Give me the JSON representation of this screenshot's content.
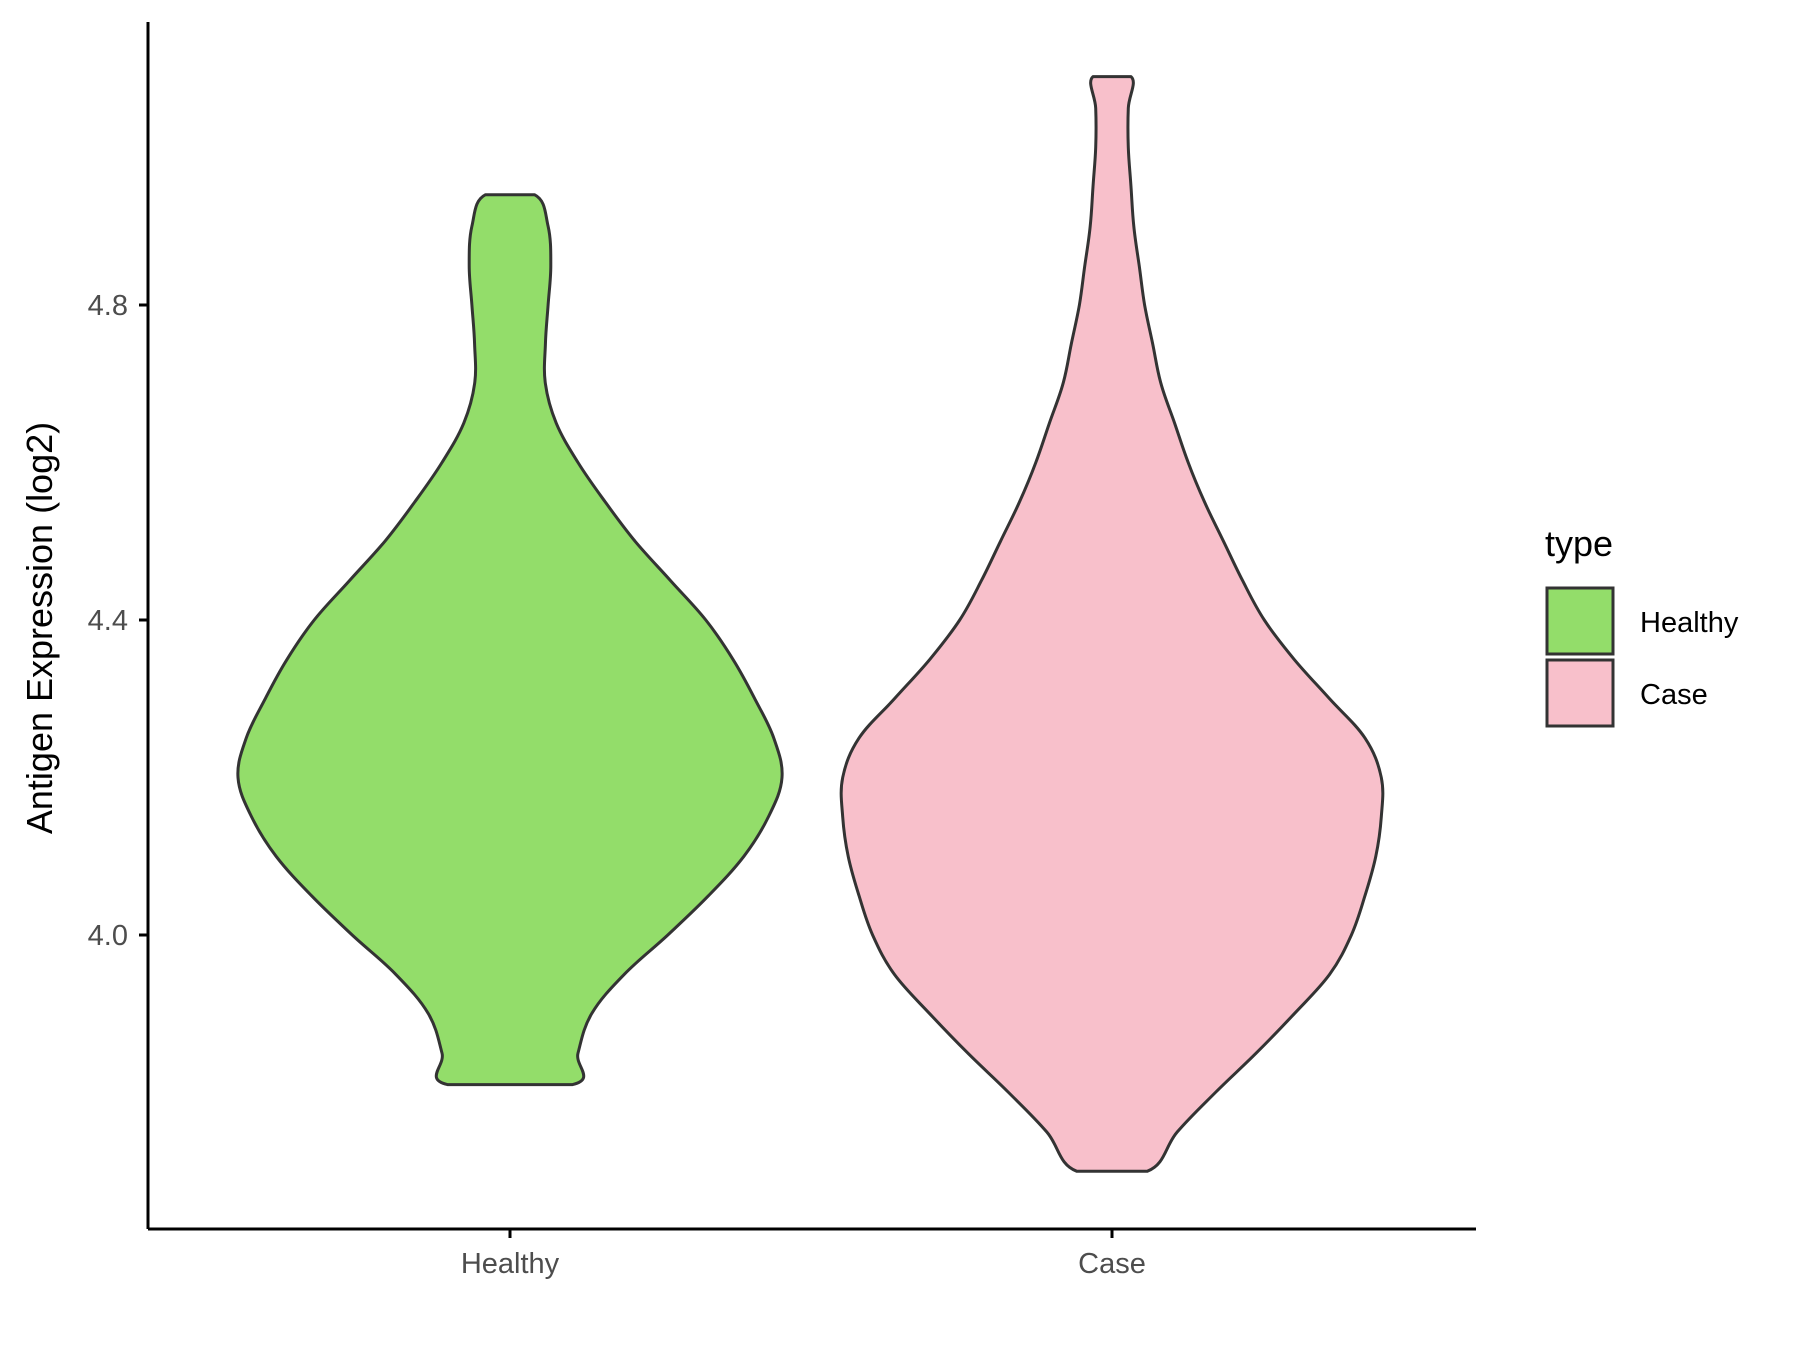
{
  "chart_data": {
    "type": "violin",
    "ylabel": "Antigen Expression (log2)",
    "xlabel": "",
    "categories": [
      "Healthy",
      "Case"
    ],
    "y_ticks": [
      "4.0",
      "4.4",
      "4.8"
    ],
    "ylim": [
      3.63,
      5.18
    ],
    "grid": false,
    "legend": {
      "title": "type",
      "position": "right",
      "entries": [
        {
          "label": "Healthy",
          "color": "#93dd6a"
        },
        {
          "label": "Case",
          "color": "#f8c0cb"
        }
      ]
    },
    "series": [
      {
        "name": "Healthy",
        "color": "#93dd6a",
        "min": 3.81,
        "max": 4.94,
        "density": [
          [
            3.81,
            0.23
          ],
          [
            3.85,
            0.25
          ],
          [
            3.9,
            0.3
          ],
          [
            3.95,
            0.42
          ],
          [
            4.0,
            0.58
          ],
          [
            4.05,
            0.73
          ],
          [
            4.1,
            0.86
          ],
          [
            4.15,
            0.95
          ],
          [
            4.2,
            1.0
          ],
          [
            4.25,
            0.97
          ],
          [
            4.3,
            0.9
          ],
          [
            4.35,
            0.82
          ],
          [
            4.4,
            0.72
          ],
          [
            4.45,
            0.59
          ],
          [
            4.5,
            0.46
          ],
          [
            4.55,
            0.35
          ],
          [
            4.6,
            0.25
          ],
          [
            4.65,
            0.17
          ],
          [
            4.7,
            0.13
          ],
          [
            4.75,
            0.13
          ],
          [
            4.8,
            0.14
          ],
          [
            4.85,
            0.15
          ],
          [
            4.9,
            0.14
          ],
          [
            4.94,
            0.09
          ]
        ]
      },
      {
        "name": "Case",
        "color": "#f8c0cb",
        "min": 3.7,
        "max": 5.09,
        "density": [
          [
            3.7,
            0.13
          ],
          [
            3.75,
            0.24
          ],
          [
            3.8,
            0.38
          ],
          [
            3.85,
            0.53
          ],
          [
            3.9,
            0.67
          ],
          [
            3.95,
            0.8
          ],
          [
            4.0,
            0.88
          ],
          [
            4.05,
            0.93
          ],
          [
            4.1,
            0.97
          ],
          [
            4.15,
            0.99
          ],
          [
            4.2,
            0.99
          ],
          [
            4.25,
            0.93
          ],
          [
            4.3,
            0.8
          ],
          [
            4.35,
            0.67
          ],
          [
            4.4,
            0.56
          ],
          [
            4.45,
            0.48
          ],
          [
            4.5,
            0.41
          ],
          [
            4.55,
            0.34
          ],
          [
            4.6,
            0.28
          ],
          [
            4.65,
            0.23
          ],
          [
            4.7,
            0.18
          ],
          [
            4.75,
            0.15
          ],
          [
            4.8,
            0.12
          ],
          [
            4.85,
            0.1
          ],
          [
            4.9,
            0.08
          ],
          [
            4.95,
            0.07
          ],
          [
            5.0,
            0.06
          ],
          [
            5.05,
            0.06
          ],
          [
            5.09,
            0.07
          ]
        ]
      }
    ]
  }
}
